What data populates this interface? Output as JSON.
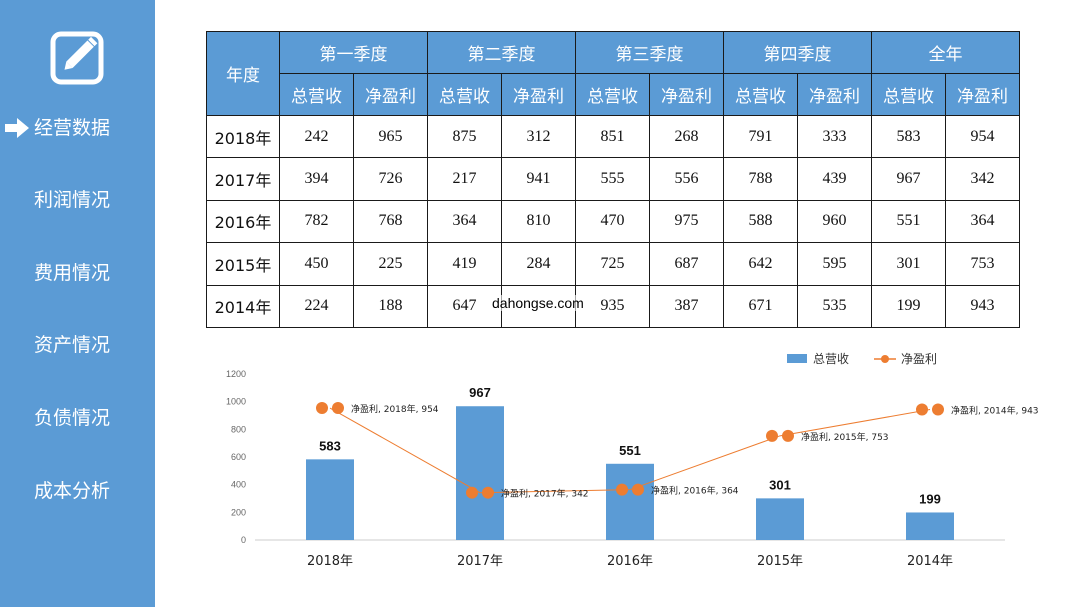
{
  "sidebar": {
    "items": [
      {
        "label": "经营数据",
        "active": true
      },
      {
        "label": "利润情况",
        "active": false
      },
      {
        "label": "费用情况",
        "active": false
      },
      {
        "label": "资产情况",
        "active": false
      },
      {
        "label": "负债情况",
        "active": false
      },
      {
        "label": "成本分析",
        "active": false
      }
    ],
    "logo_icon": "edit-icon",
    "active_icon": "arrow-right-icon",
    "background_color": "#5b9bd5"
  },
  "table": {
    "year_header": "年度",
    "groups": [
      "第一季度",
      "第二季度",
      "第三季度",
      "第四季度",
      "全年"
    ],
    "subheaders": [
      "总营收",
      "净盈利"
    ],
    "rows": [
      {
        "year": "2018年",
        "values": [
          "242",
          "965",
          "875",
          "312",
          "851",
          "268",
          "791",
          "333",
          "583",
          "954"
        ]
      },
      {
        "year": "2017年",
        "values": [
          "394",
          "726",
          "217",
          "941",
          "555",
          "556",
          "788",
          "439",
          "967",
          "342"
        ]
      },
      {
        "year": "2016年",
        "values": [
          "782",
          "768",
          "364",
          "810",
          "470",
          "975",
          "588",
          "960",
          "551",
          "364"
        ]
      },
      {
        "year": "2015年",
        "values": [
          "450",
          "225",
          "419",
          "284",
          "725",
          "687",
          "642",
          "595",
          "301",
          "753"
        ]
      },
      {
        "year": "2014年",
        "values": [
          "224",
          "188",
          "647",
          "",
          "935",
          "387",
          "671",
          "535",
          "199",
          "943"
        ]
      }
    ],
    "header_color": "#5b9bd5"
  },
  "watermark": "dahongse.com",
  "chart_data": {
    "type": "bar",
    "categories": [
      "2018年",
      "2017年",
      "2016年",
      "2015年",
      "2014年"
    ],
    "series": [
      {
        "name": "总营收",
        "type": "bar",
        "color": "#5b9bd5",
        "values": [
          583,
          967,
          551,
          301,
          199
        ]
      },
      {
        "name": "净盈利",
        "type": "line",
        "color": "#ed7d31",
        "values": [
          954,
          342,
          364,
          753,
          943
        ],
        "data_labels": [
          "净盈利, 2018年, 954",
          "净盈利, 2017年, 342",
          "净盈利, 2016年, 364",
          "净盈利, 2015年, 753",
          "净盈利, 2014年, 943"
        ]
      }
    ],
    "yticks": [
      "0",
      "200",
      "400",
      "600",
      "800",
      "1000",
      "1200"
    ],
    "ylim": [
      0,
      1200
    ],
    "legend_position": "top-right",
    "grid": false
  }
}
